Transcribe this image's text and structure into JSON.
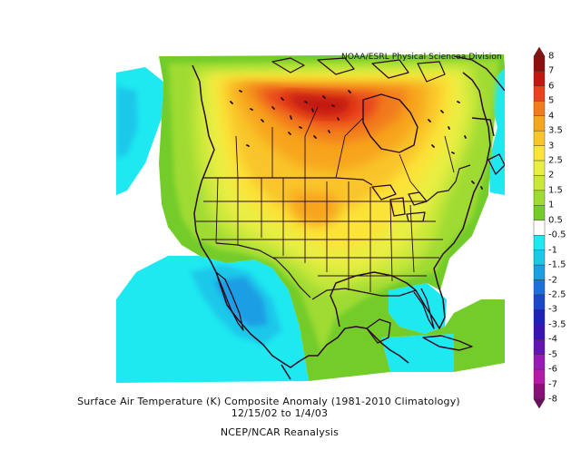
{
  "credit": "NOAA/ESRL Physical Sciencea Division",
  "caption": {
    "line1": "Surface Air Temperature (K) Composite Anomaly (1981-2010 Climatology)",
    "line2": "12/15/02  to 1/4/03",
    "line3": "NCEP/NCAR Reanalysis"
  },
  "legend": {
    "levels": [
      "8",
      "7",
      "6",
      "5",
      "4",
      "3.5",
      "3",
      "2.5",
      "2",
      "1.5",
      "1",
      "0.5",
      "-0.5",
      "-1",
      "-1.5",
      "-2",
      "-2.5",
      "-3",
      "-3.5",
      "-4",
      "-5",
      "-6",
      "-7",
      "-8"
    ],
    "colors": [
      "#8b0f0f",
      "#c0180c",
      "#e8431a",
      "#f27c1c",
      "#f7a51e",
      "#f9c52b",
      "#fbe338",
      "#e9ee42",
      "#c9e83a",
      "#9fdb32",
      "#73cc2a",
      "#ffffff",
      "#1ee8f0",
      "#1cc8ea",
      "#1a9ee4",
      "#1a72d8",
      "#1a48c8",
      "#1e22b8",
      "#3a14b0",
      "#6414b2",
      "#9a18b8",
      "#b41aa8",
      "#8a1078"
    ]
  },
  "map": {
    "ocean_color": "#ffffff",
    "land_outline_color": "#2a0a1e"
  }
}
